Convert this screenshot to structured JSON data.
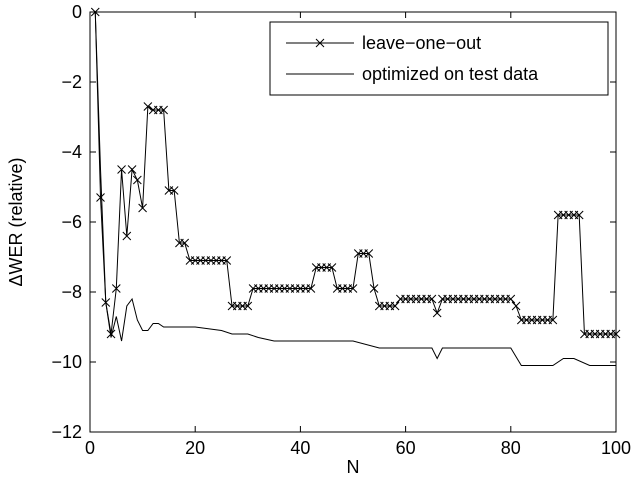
{
  "chart_data": {
    "type": "line",
    "xlabel": "N",
    "ylabel": "ΔWER (relative)",
    "xlim": [
      0,
      100
    ],
    "ylim": [
      -12,
      0
    ],
    "xticks": [
      0,
      20,
      40,
      60,
      80,
      100
    ],
    "yticks": [
      0,
      -2,
      -4,
      -6,
      -8,
      -10,
      -12
    ],
    "xtick_labels": [
      "0",
      "20",
      "40",
      "60",
      "80",
      "100"
    ],
    "ytick_labels": [
      "0",
      "−2",
      "−4",
      "−6",
      "−8",
      "−10",
      "−12"
    ],
    "grid": false,
    "legend_position": "top-right",
    "series": [
      {
        "name": "leave−one−out",
        "marker": "x",
        "color": "#000000",
        "x": [
          1,
          2,
          3,
          4,
          5,
          6,
          7,
          8,
          9,
          10,
          11,
          12,
          13,
          14,
          15,
          16,
          17,
          18,
          19,
          20,
          21,
          22,
          23,
          24,
          25,
          26,
          27,
          28,
          29,
          30,
          31,
          32,
          33,
          34,
          35,
          36,
          37,
          38,
          39,
          40,
          41,
          42,
          43,
          44,
          45,
          46,
          47,
          48,
          49,
          50,
          51,
          52,
          53,
          54,
          55,
          56,
          57,
          58,
          59,
          60,
          61,
          62,
          63,
          64,
          65,
          66,
          67,
          68,
          69,
          70,
          71,
          72,
          73,
          74,
          75,
          76,
          77,
          78,
          79,
          80,
          81,
          82,
          83,
          84,
          85,
          86,
          87,
          88,
          89,
          90,
          91,
          92,
          93,
          94,
          95,
          96,
          97,
          98,
          99,
          100
        ],
        "y": [
          0,
          -5.3,
          -8.3,
          -9.2,
          -7.9,
          -4.5,
          -6.4,
          -4.5,
          -4.8,
          -5.6,
          -2.7,
          -2.8,
          -2.8,
          -2.8,
          -5.1,
          -5.1,
          -6.6,
          -6.6,
          -7.1,
          -7.1,
          -7.1,
          -7.1,
          -7.1,
          -7.1,
          -7.1,
          -7.1,
          -8.4,
          -8.4,
          -8.4,
          -8.4,
          -7.9,
          -7.9,
          -7.9,
          -7.9,
          -7.9,
          -7.9,
          -7.9,
          -7.9,
          -7.9,
          -7.9,
          -7.9,
          -7.9,
          -7.3,
          -7.3,
          -7.3,
          -7.3,
          -7.9,
          -7.9,
          -7.9,
          -7.9,
          -6.9,
          -6.9,
          -6.9,
          -7.9,
          -8.4,
          -8.4,
          -8.4,
          -8.4,
          -8.2,
          -8.2,
          -8.2,
          -8.2,
          -8.2,
          -8.2,
          -8.2,
          -8.6,
          -8.2,
          -8.2,
          -8.2,
          -8.2,
          -8.2,
          -8.2,
          -8.2,
          -8.2,
          -8.2,
          -8.2,
          -8.2,
          -8.2,
          -8.2,
          -8.2,
          -8.4,
          -8.8,
          -8.8,
          -8.8,
          -8.8,
          -8.8,
          -8.8,
          -8.8,
          -5.8,
          -5.8,
          -5.8,
          -5.8,
          -5.8,
          -9.2,
          -9.2,
          -9.2,
          -9.2,
          -9.2,
          -9.2,
          -9.2
        ]
      },
      {
        "name": "optimized on test data",
        "marker": "none",
        "color": "#000000",
        "x": [
          1,
          2,
          3,
          4,
          5,
          6,
          7,
          8,
          9,
          10,
          11,
          12,
          13,
          14,
          15,
          20,
          25,
          27,
          30,
          32,
          35,
          40,
          45,
          50,
          55,
          60,
          65,
          66,
          67,
          70,
          75,
          80,
          82,
          85,
          88,
          90,
          92,
          95,
          97,
          100
        ],
        "y": [
          0,
          -4.5,
          -8.3,
          -9.3,
          -8.7,
          -9.4,
          -8.4,
          -8.2,
          -8.8,
          -9.1,
          -9.1,
          -8.9,
          -8.9,
          -9.0,
          -9.0,
          -9.0,
          -9.1,
          -9.2,
          -9.2,
          -9.3,
          -9.4,
          -9.4,
          -9.4,
          -9.4,
          -9.6,
          -9.6,
          -9.6,
          -9.9,
          -9.6,
          -9.6,
          -9.6,
          -9.6,
          -10.1,
          -10.1,
          -10.1,
          -9.9,
          -9.9,
          -10.1,
          -10.1,
          -10.1
        ]
      }
    ]
  }
}
